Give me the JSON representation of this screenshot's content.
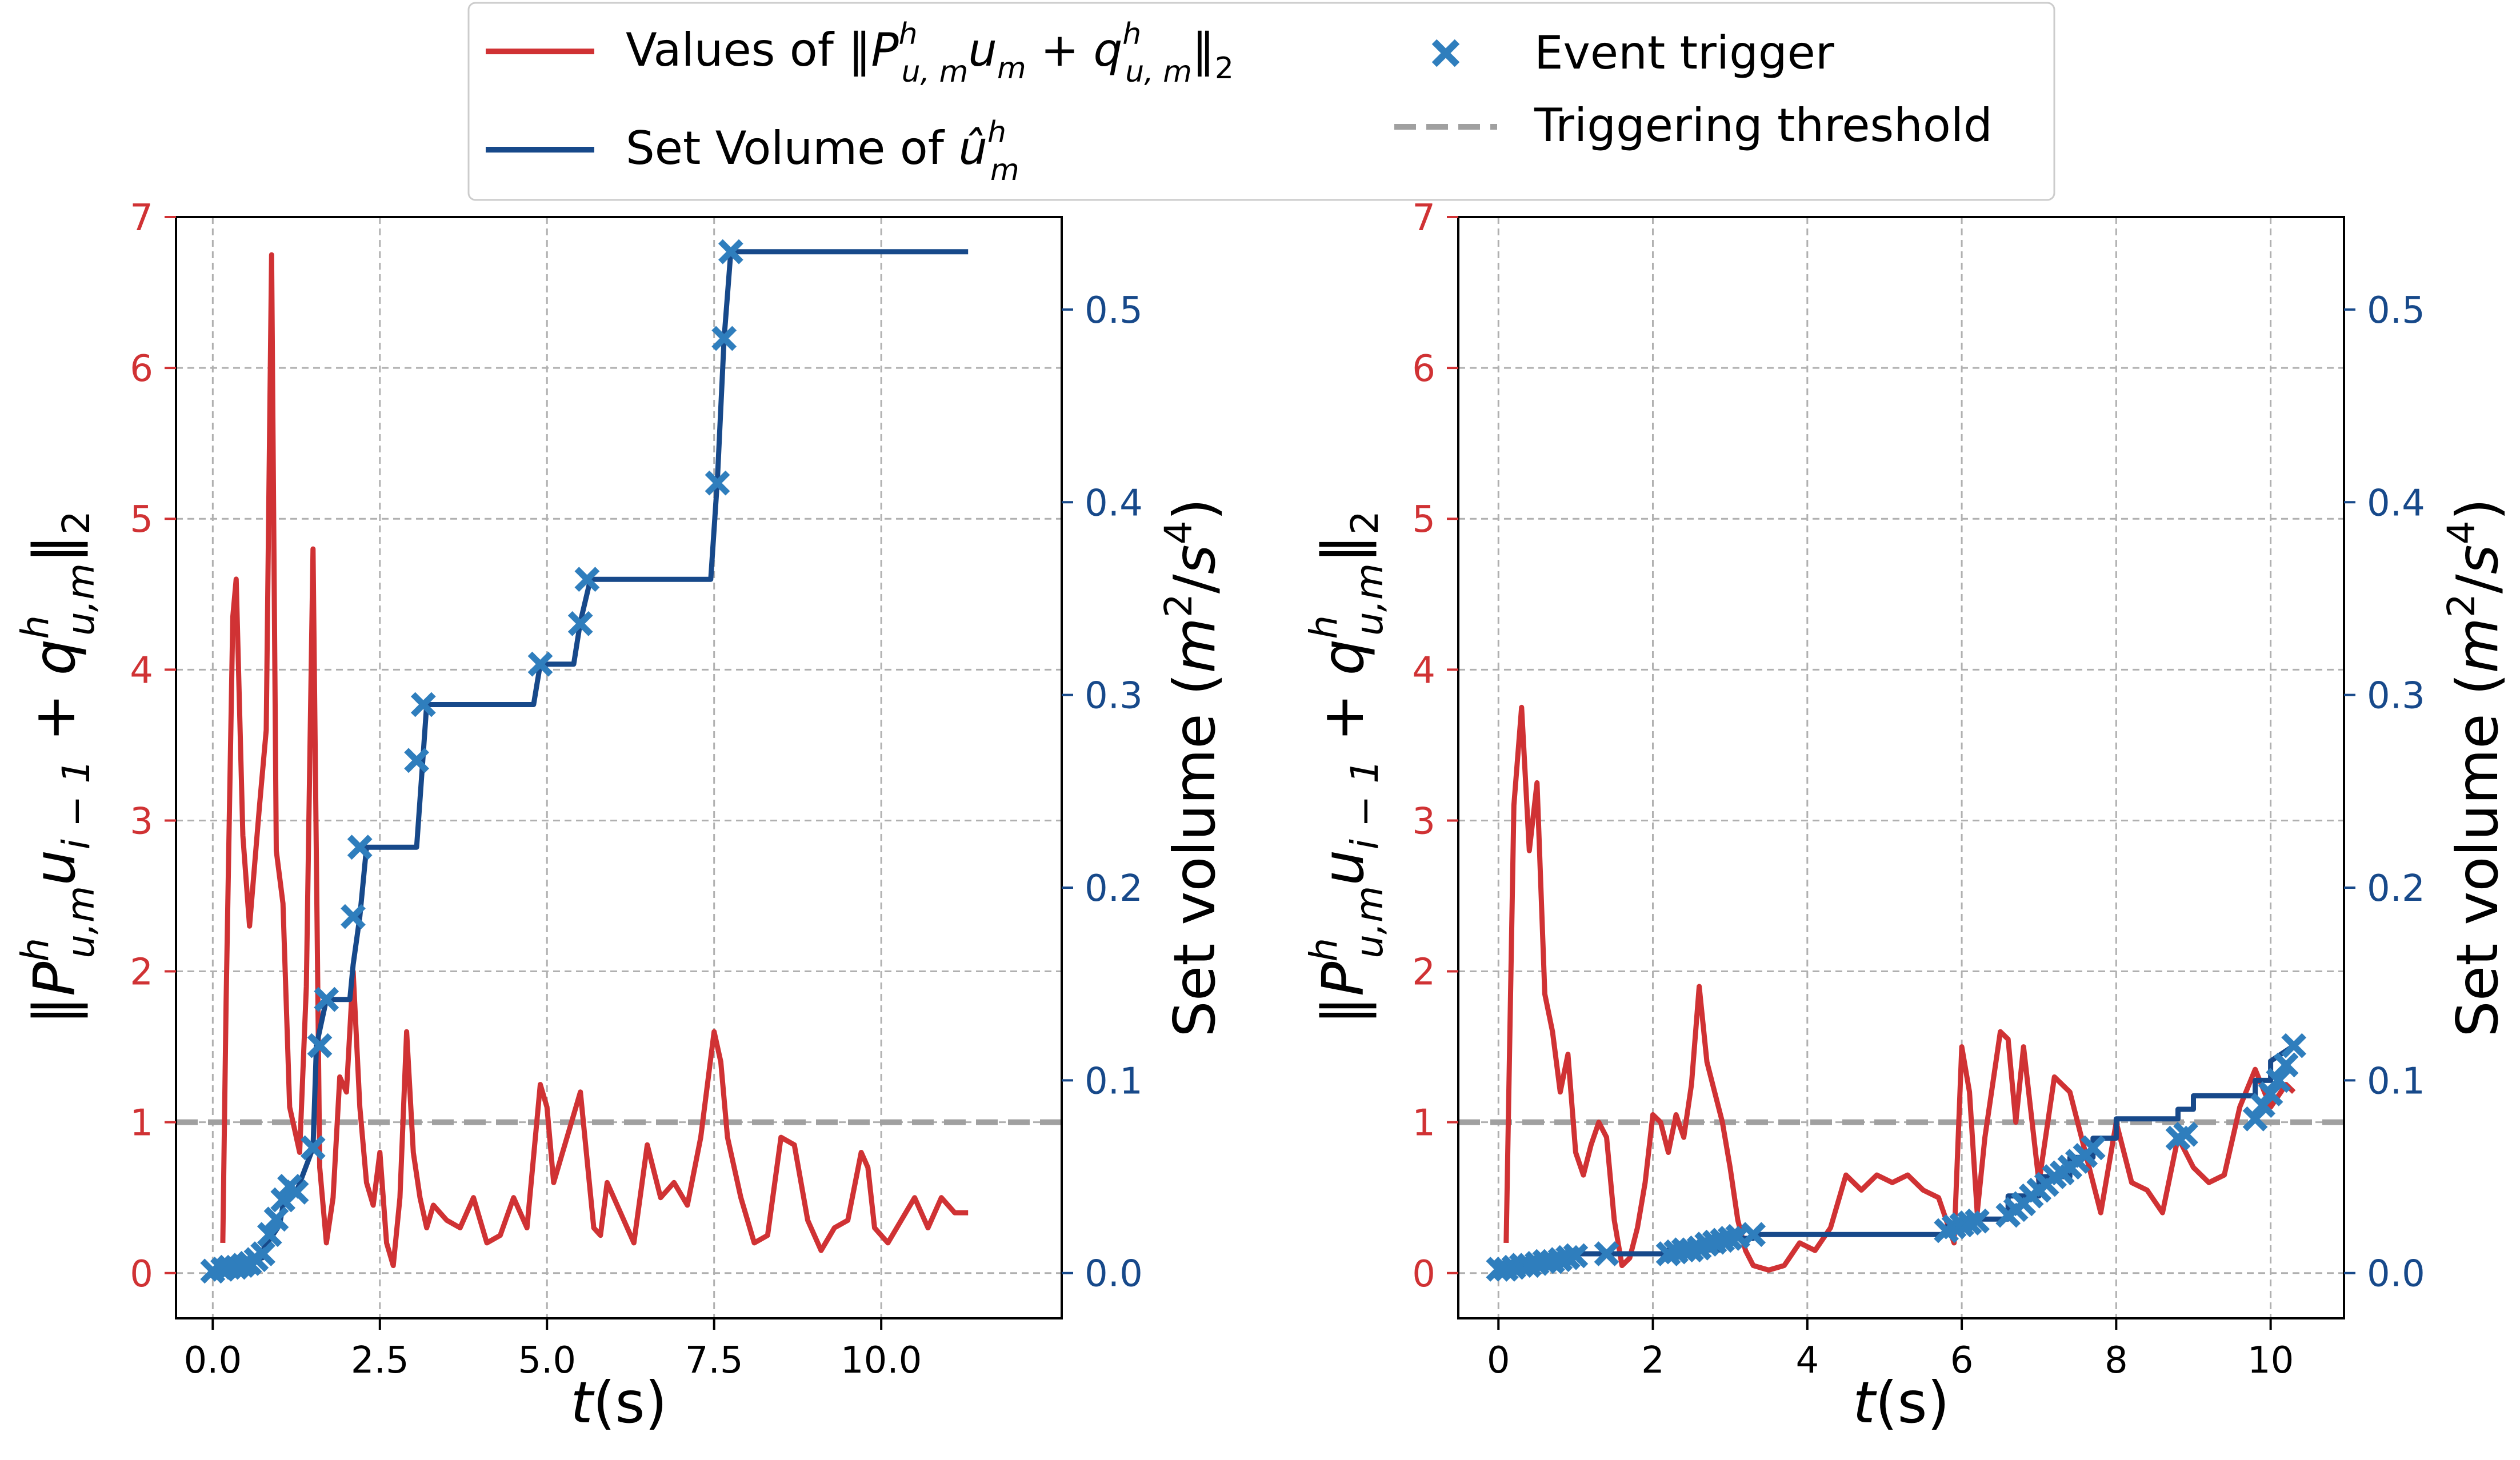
{
  "colors": {
    "red": "#d03234",
    "navy": "#17498a",
    "marker": "#2f7ebd",
    "threshold": "#a0a0a0",
    "grid": "#b0b0b0",
    "legend_border": "#cccccc"
  },
  "legend": {
    "items": [
      {
        "label": "Values of ‖P",
        "kind": "red-line"
      },
      {
        "label": "Set Volume of û",
        "kind": "navy-line"
      },
      {
        "label": "Event trigger",
        "kind": "marker"
      },
      {
        "label": "Triggering threshold",
        "kind": "dashed"
      }
    ],
    "values_prefix": "Values of ",
    "setvol_prefix": "Set Volume of ",
    "event_label": "Event trigger",
    "threshold_label": "Triggering threshold"
  },
  "chart_data": [
    {
      "type": "line",
      "title": "",
      "xlabel": "t(s)",
      "xlabel_main": "t",
      "xlabel_unit": "(s)",
      "ylabel_left": "‖P^h_{u,m} u_{i−1} + q^h_{u,m}‖_2",
      "ylabel_right": "Set volume (m^2/s^4)",
      "ylabel_right_text": "Set volume (",
      "xlim": [
        -0.55,
        12.7
      ],
      "ylim_left": [
        -0.3,
        7.0
      ],
      "ylim_right": [
        -0.0235,
        0.548
      ],
      "xticks": [
        0.0,
        2.5,
        5.0,
        7.5,
        10.0
      ],
      "xtick_labels": [
        "0.0",
        "2.5",
        "5.0",
        "7.5",
        "10.0"
      ],
      "yticks_left": [
        0,
        1,
        2,
        3,
        4,
        5,
        6,
        7
      ],
      "yticks_right": [
        0.0,
        0.1,
        0.2,
        0.3,
        0.4,
        0.5
      ],
      "threshold": 1.0,
      "series_values": {
        "name": "Values of ‖P u + q‖2",
        "x": [
          0.15,
          0.2,
          0.3,
          0.35,
          0.45,
          0.55,
          0.7,
          0.8,
          0.88,
          0.95,
          1.05,
          1.15,
          1.25,
          1.3,
          1.4,
          1.5,
          1.6,
          1.7,
          1.8,
          1.9,
          2.0,
          2.1,
          2.2,
          2.3,
          2.4,
          2.5,
          2.6,
          2.7,
          2.8,
          2.9,
          3.0,
          3.1,
          3.2,
          3.3,
          3.5,
          3.7,
          3.9,
          4.1,
          4.3,
          4.5,
          4.7,
          4.9,
          5.0,
          5.1,
          5.3,
          5.5,
          5.7,
          5.8,
          5.9,
          6.1,
          6.3,
          6.5,
          6.7,
          6.9,
          7.1,
          7.3,
          7.5,
          7.6,
          7.7,
          7.9,
          8.1,
          8.3,
          8.5,
          8.7,
          8.9,
          9.1,
          9.3,
          9.5,
          9.7,
          9.8,
          9.9,
          10.1,
          10.3,
          10.5,
          10.7,
          10.9,
          11.1,
          11.3
        ],
        "y": [
          0.2,
          1.8,
          4.35,
          4.6,
          2.9,
          2.3,
          3.1,
          3.6,
          6.75,
          2.8,
          2.45,
          1.1,
          0.9,
          0.8,
          1.9,
          4.8,
          0.7,
          0.2,
          0.5,
          1.3,
          1.2,
          2.0,
          1.1,
          0.6,
          0.45,
          0.8,
          0.2,
          0.05,
          0.5,
          1.6,
          0.8,
          0.5,
          0.3,
          0.45,
          0.35,
          0.3,
          0.5,
          0.2,
          0.25,
          0.5,
          0.3,
          1.25,
          1.1,
          0.6,
          0.9,
          1.2,
          0.3,
          0.25,
          0.6,
          0.4,
          0.2,
          0.85,
          0.5,
          0.6,
          0.45,
          0.9,
          1.6,
          1.4,
          0.9,
          0.5,
          0.2,
          0.25,
          0.9,
          0.85,
          0.35,
          0.15,
          0.3,
          0.35,
          0.8,
          0.7,
          0.3,
          0.2,
          0.35,
          0.5,
          0.3,
          0.5,
          0.4,
          0.4
        ]
      },
      "series_setvolume": {
        "name": "Set Volume",
        "x": [
          0.0,
          0.25,
          0.25,
          0.5,
          0.5,
          0.75,
          0.75,
          1.0,
          1.05,
          1.25,
          1.5,
          1.55,
          1.7,
          2.05,
          2.1,
          2.2,
          2.3,
          2.3,
          3.05,
          3.15,
          3.2,
          4.8,
          4.9,
          5.4,
          5.5,
          5.65,
          5.7,
          7.45,
          7.55,
          7.65,
          7.75,
          11.3
        ],
        "y": [
          0.002,
          0.003,
          0.004,
          0.005,
          0.006,
          0.008,
          0.012,
          0.025,
          0.035,
          0.042,
          0.065,
          0.118,
          0.142,
          0.142,
          0.16,
          0.185,
          0.221,
          0.221,
          0.221,
          0.27,
          0.295,
          0.295,
          0.316,
          0.316,
          0.338,
          0.36,
          0.36,
          0.36,
          0.412,
          0.485,
          0.53,
          0.53
        ]
      },
      "series_events": {
        "name": "Event trigger",
        "x": [
          0.0,
          0.15,
          0.25,
          0.35,
          0.45,
          0.55,
          0.65,
          0.75,
          0.85,
          0.95,
          1.05,
          1.15,
          1.25,
          1.5,
          1.6,
          1.7,
          2.1,
          2.2,
          3.05,
          3.15,
          4.9,
          5.5,
          5.6,
          7.55,
          7.65,
          7.75
        ],
        "y": [
          0.001,
          0.002,
          0.003,
          0.003,
          0.004,
          0.005,
          0.007,
          0.01,
          0.02,
          0.028,
          0.038,
          0.045,
          0.042,
          0.065,
          0.118,
          0.142,
          0.185,
          0.221,
          0.266,
          0.295,
          0.316,
          0.337,
          0.36,
          0.41,
          0.485,
          0.53
        ]
      }
    },
    {
      "type": "line",
      "title": "",
      "xlabel": "t(s)",
      "xlabel_main": "t",
      "xlabel_unit": "(s)",
      "ylabel_left": "‖P^h_{u,m} u_{i−1} + q^h_{u,m}‖_2",
      "ylabel_right": "Set volume (m^2/s^4)",
      "ylabel_right_text": "Set volume (",
      "xlim": [
        -0.52,
        10.95
      ],
      "ylim_left": [
        -0.3,
        7.0
      ],
      "ylim_right": [
        -0.0235,
        0.548
      ],
      "xticks": [
        0,
        2,
        4,
        6,
        8,
        10
      ],
      "xtick_labels": [
        "0",
        "2",
        "4",
        "6",
        "8",
        "10"
      ],
      "yticks_left": [
        0,
        1,
        2,
        3,
        4,
        5,
        6,
        7
      ],
      "yticks_right": [
        0.0,
        0.1,
        0.2,
        0.3,
        0.4,
        0.5
      ],
      "threshold": 1.0,
      "series_values": {
        "name": "Values of ‖P u + q‖2",
        "x": [
          0.1,
          0.2,
          0.3,
          0.4,
          0.5,
          0.6,
          0.7,
          0.8,
          0.9,
          1.0,
          1.1,
          1.2,
          1.3,
          1.4,
          1.5,
          1.6,
          1.7,
          1.8,
          1.9,
          2.0,
          2.1,
          2.2,
          2.3,
          2.4,
          2.5,
          2.6,
          2.7,
          2.8,
          2.9,
          3.0,
          3.1,
          3.2,
          3.3,
          3.5,
          3.7,
          3.9,
          4.1,
          4.3,
          4.5,
          4.7,
          4.9,
          5.1,
          5.3,
          5.5,
          5.7,
          5.9,
          6.0,
          6.1,
          6.2,
          6.3,
          6.5,
          6.6,
          6.7,
          6.8,
          7.0,
          7.2,
          7.4,
          7.6,
          7.8,
          8.0,
          8.2,
          8.4,
          8.6,
          8.8,
          9.0,
          9.2,
          9.4,
          9.6,
          9.8,
          10.0,
          10.2,
          10.3
        ],
        "y": [
          0.2,
          3.1,
          3.75,
          2.8,
          3.25,
          1.85,
          1.6,
          1.2,
          1.45,
          0.8,
          0.65,
          0.85,
          1.0,
          0.9,
          0.35,
          0.05,
          0.1,
          0.3,
          0.6,
          1.05,
          1.0,
          0.8,
          1.05,
          0.9,
          1.25,
          1.9,
          1.4,
          1.2,
          1.0,
          0.7,
          0.35,
          0.15,
          0.05,
          0.02,
          0.05,
          0.2,
          0.15,
          0.3,
          0.65,
          0.55,
          0.65,
          0.6,
          0.65,
          0.55,
          0.5,
          0.2,
          1.5,
          1.2,
          0.4,
          0.9,
          1.6,
          1.55,
          1.0,
          1.5,
          0.6,
          1.3,
          1.2,
          0.8,
          0.4,
          1.0,
          0.6,
          0.55,
          0.4,
          0.9,
          0.7,
          0.6,
          0.65,
          1.1,
          1.35,
          1.1,
          1.25,
          1.2
        ]
      },
      "series_setvolume": {
        "name": "Set Volume",
        "x": [
          0.0,
          0.2,
          0.2,
          0.5,
          0.5,
          0.8,
          0.8,
          1.0,
          1.0,
          1.4,
          1.4,
          2.2,
          2.2,
          2.9,
          2.9,
          3.3,
          3.3,
          5.8,
          5.8,
          6.0,
          6.0,
          6.6,
          6.6,
          7.0,
          7.0,
          7.4,
          7.4,
          7.7,
          7.7,
          8.0,
          8.0,
          8.8,
          8.8,
          9.0,
          9.0,
          9.8,
          9.8,
          10.0,
          10.0,
          10.3
        ],
        "y": [
          0.002,
          0.002,
          0.004,
          0.004,
          0.006,
          0.006,
          0.008,
          0.008,
          0.01,
          0.01,
          0.01,
          0.01,
          0.012,
          0.012,
          0.018,
          0.018,
          0.02,
          0.02,
          0.024,
          0.024,
          0.028,
          0.028,
          0.04,
          0.04,
          0.05,
          0.05,
          0.06,
          0.06,
          0.07,
          0.07,
          0.08,
          0.08,
          0.085,
          0.085,
          0.092,
          0.092,
          0.1,
          0.1,
          0.11,
          0.118
        ]
      },
      "series_events": {
        "name": "Event trigger",
        "x": [
          0.0,
          0.1,
          0.2,
          0.3,
          0.4,
          0.5,
          0.6,
          0.7,
          0.8,
          0.9,
          1.0,
          1.4,
          2.2,
          2.3,
          2.4,
          2.5,
          2.6,
          2.7,
          2.8,
          2.9,
          3.0,
          3.1,
          3.3,
          5.8,
          5.9,
          6.0,
          6.1,
          6.2,
          6.6,
          6.7,
          6.8,
          6.9,
          7.0,
          7.1,
          7.2,
          7.3,
          7.4,
          7.5,
          7.6,
          7.7,
          8.8,
          8.9,
          9.8,
          9.9,
          10.0,
          10.1,
          10.2,
          10.3
        ],
        "y": [
          0.002,
          0.002,
          0.003,
          0.004,
          0.004,
          0.005,
          0.006,
          0.006,
          0.007,
          0.008,
          0.009,
          0.01,
          0.01,
          0.011,
          0.012,
          0.012,
          0.013,
          0.015,
          0.016,
          0.017,
          0.018,
          0.019,
          0.02,
          0.022,
          0.024,
          0.025,
          0.026,
          0.027,
          0.03,
          0.033,
          0.036,
          0.04,
          0.043,
          0.046,
          0.05,
          0.052,
          0.055,
          0.058,
          0.061,
          0.065,
          0.07,
          0.072,
          0.08,
          0.087,
          0.093,
          0.1,
          0.108,
          0.118
        ]
      }
    }
  ]
}
